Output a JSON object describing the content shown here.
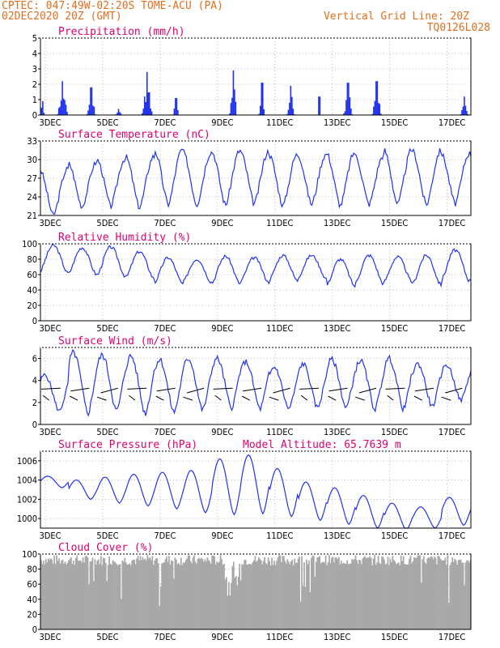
{
  "header": {
    "line1_left": "CPTEC:  047:49W-02:20S  TOME-ACU (PA)",
    "line2_left": "02DEC2020 20Z (GMT)",
    "line1_right": "Vertical Grid Line: 20Z",
    "line2_right": "TQ0126L028"
  },
  "x_ticks": [
    "3DEC",
    "5DEC",
    "7DEC",
    "9DEC",
    "11DEC",
    "13DEC",
    "15DEC",
    "17DEC"
  ],
  "colors": {
    "line": "#2233ee",
    "bar": "#2233ee",
    "cloud": "#a8a8a8",
    "title": "#e0006f",
    "header": "#e07020"
  },
  "chart_data": [
    {
      "type": "bar",
      "title": "Precipitation (mm/h)",
      "ylim": [
        0,
        5
      ],
      "yticks": [
        "0",
        "1",
        "2",
        "3",
        "4",
        "5"
      ],
      "x_unit": "day index from 02DEC2020 20Z (tick at each day)",
      "bursts": [
        {
          "day": 0.05,
          "peak": 0.9,
          "width": 0.15
        },
        {
          "day": 0.75,
          "peak": 2.2,
          "width": 0.35
        },
        {
          "day": 1.75,
          "peak": 1.8,
          "width": 0.3
        },
        {
          "day": 2.7,
          "peak": 0.4,
          "width": 0.25
        },
        {
          "day": 3.7,
          "peak": 2.8,
          "width": 0.35
        },
        {
          "day": 4.7,
          "peak": 1.1,
          "width": 0.2
        },
        {
          "day": 6.7,
          "peak": 2.9,
          "width": 0.25
        },
        {
          "day": 7.7,
          "peak": 2.1,
          "width": 0.2
        },
        {
          "day": 8.7,
          "peak": 1.9,
          "width": 0.25
        },
        {
          "day": 9.7,
          "peak": 1.2,
          "width": 0.05
        },
        {
          "day": 10.7,
          "peak": 2.1,
          "width": 0.3
        },
        {
          "day": 11.7,
          "peak": 2.2,
          "width": 0.3
        },
        {
          "day": 14.75,
          "peak": 1.2,
          "width": 0.25
        }
      ]
    },
    {
      "type": "line",
      "title": "Surface Temperature (nC)",
      "ylim": [
        21,
        33
      ],
      "yticks": [
        "21",
        "24",
        "27",
        "30",
        "33"
      ],
      "daily_min": [
        21.0,
        22.4,
        22.5,
        22.3,
        22.8,
        22.8,
        22.7,
        22.9,
        22.6,
        22.8,
        22.6,
        22.8,
        22.8,
        22.7,
        22.9
      ],
      "daily_max": [
        28.5,
        29.5,
        30.1,
        30.5,
        31.6,
        31.2,
        31.4,
        31.3,
        30.8,
        30.8,
        31.1,
        30.6,
        31.6,
        31.4,
        31.0
      ]
    },
    {
      "type": "line",
      "title": "Relative Humidity (%)",
      "ylim": [
        0,
        100
      ],
      "yticks": [
        "0",
        "20",
        "40",
        "60",
        "80",
        "100"
      ],
      "daily_min": [
        62,
        60,
        58,
        55,
        48,
        50,
        48,
        50,
        52,
        55,
        45,
        48,
        50,
        47,
        52
      ],
      "daily_max": [
        98,
        95,
        96,
        90,
        82,
        80,
        84,
        82,
        85,
        85,
        80,
        85,
        83,
        85,
        92
      ]
    },
    {
      "type": "line",
      "title": "Surface Wind (m/s)",
      "ylim": [
        0,
        7
      ],
      "yticks": [
        "0",
        "2",
        "4",
        "6"
      ],
      "daily_min": [
        1.2,
        1.0,
        1.2,
        1.0,
        1.1,
        1.3,
        1.5,
        1.4,
        1.4,
        1.5,
        1.5,
        1.4,
        1.4,
        1.6,
        2.2
      ],
      "daily_max": [
        4.5,
        6.5,
        6.3,
        6.2,
        5.9,
        6.0,
        6.0,
        5.7,
        5.2,
        5.5,
        5.9,
        5.8,
        6.0,
        5.5,
        5.4
      ]
    },
    {
      "type": "line",
      "title": "Surface Pressure (hPa)",
      "annotation": "Model Altitude: 65.7639 m",
      "ylim": [
        999,
        1007
      ],
      "yticks": [
        "1000",
        "1002",
        "1004",
        "1006"
      ],
      "daily_min": [
        1003.2,
        1002.0,
        1001.6,
        1001.3,
        1001.0,
        1000.6,
        1000.4,
        1000.5,
        1000.2,
        999.8,
        999.4,
        999.0,
        998.8,
        999.0,
        999.3
      ],
      "daily_max": [
        1004.4,
        1004.0,
        1004.3,
        1004.6,
        1004.8,
        1005.0,
        1006.2,
        1006.6,
        1005.2,
        1003.8,
        1003.2,
        1002.4,
        1001.6,
        1001.2,
        1002.2
      ]
    },
    {
      "type": "bar",
      "title": "Cloud Cover (%)",
      "ylim": [
        0,
        100
      ],
      "yticks": [
        "0",
        "20",
        "40",
        "60",
        "80",
        "100"
      ],
      "base_level": 92
    }
  ]
}
